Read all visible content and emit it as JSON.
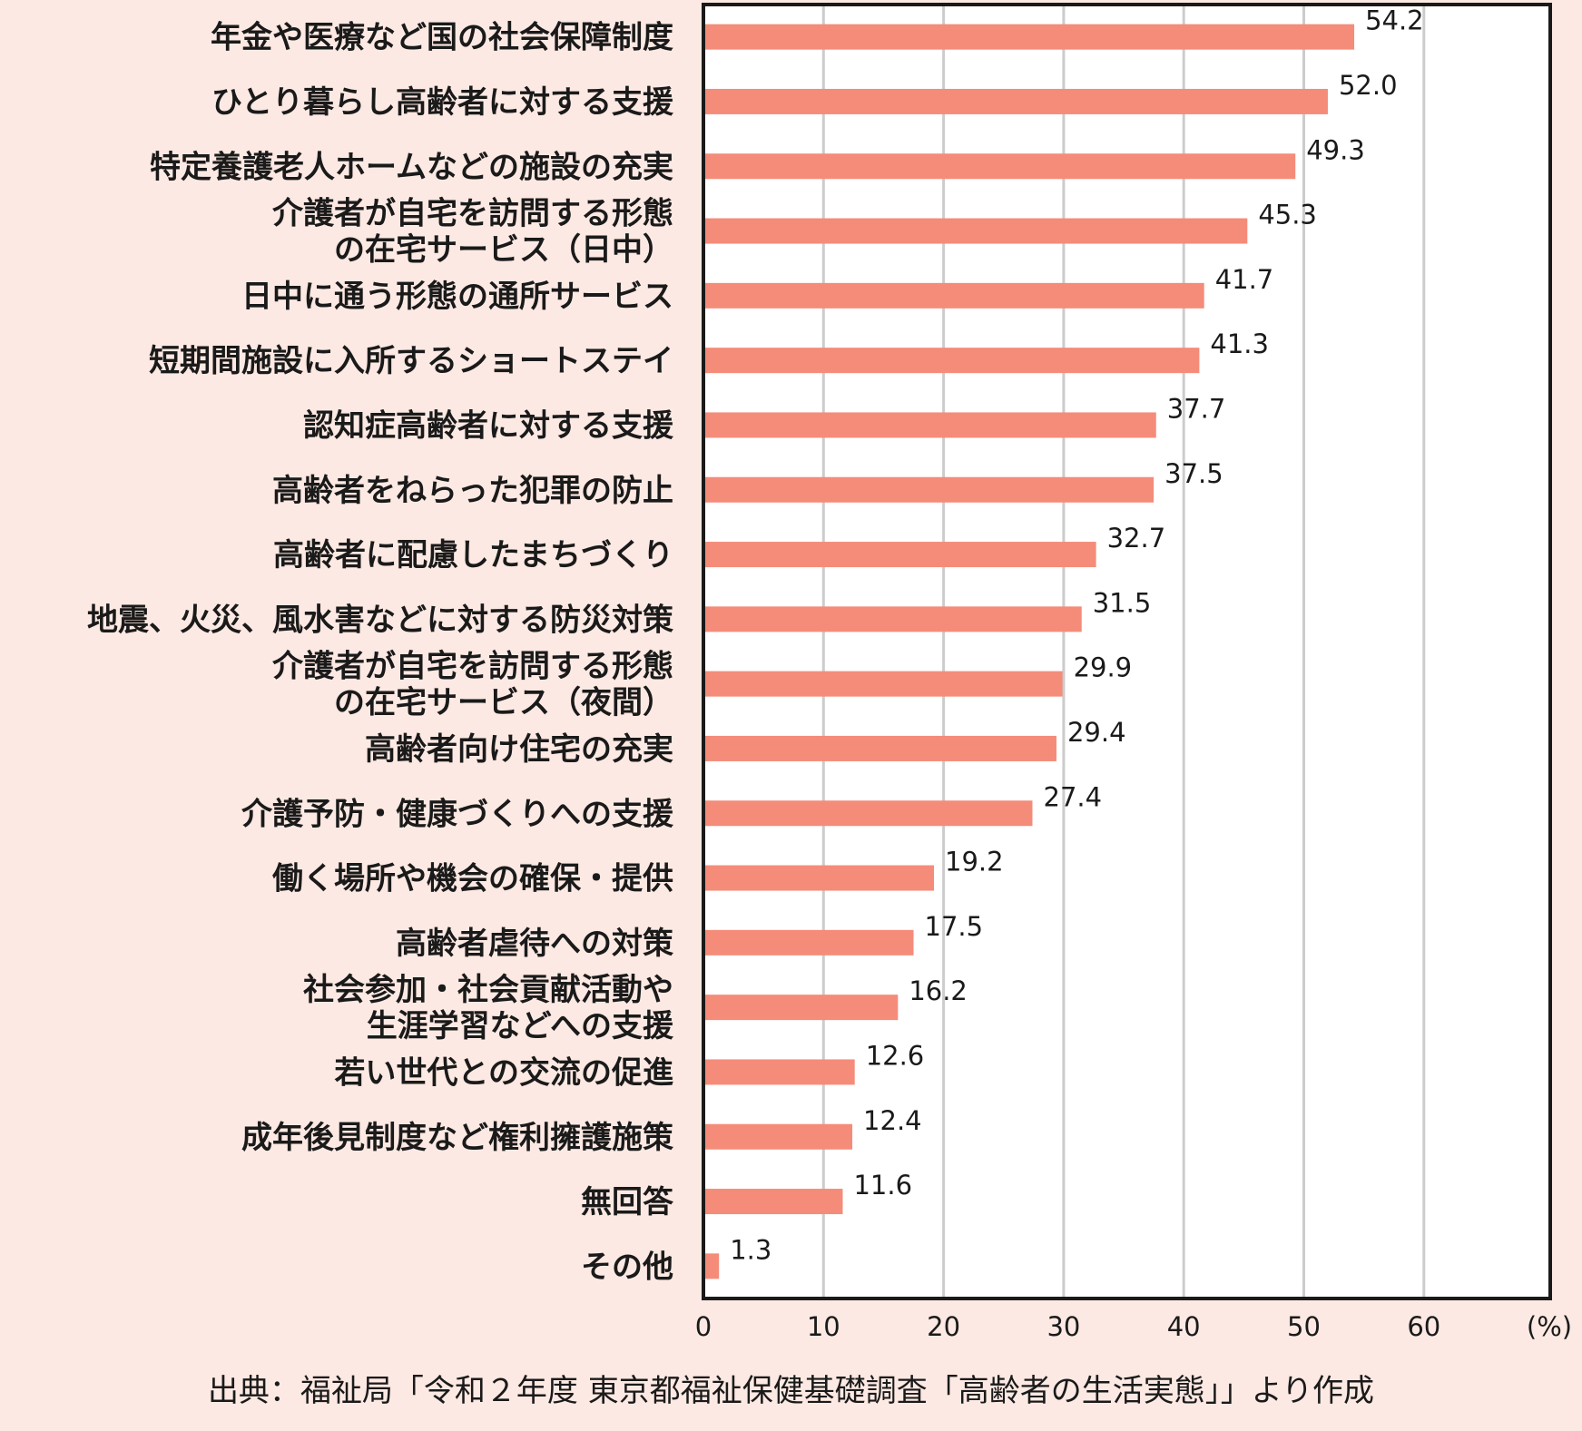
{
  "chart_data": {
    "type": "bar",
    "orientation": "horizontal",
    "categories": [
      "年金や医療など国の社会保障制度",
      "ひとり暮らし高齢者に対する支援",
      "特定養護老人ホームなどの施設の充実",
      "介護者が自宅を訪問する形態\nの在宅サービス（日中）",
      "日中に通う形態の通所サービス",
      "短期間施設に入所するショートステイ",
      "認知症高齢者に対する支援",
      "高齢者をねらった犯罪の防止",
      "高齢者に配慮したまちづくり",
      "地震、火災、風水害などに対する防災対策",
      "介護者が自宅を訪問する形態\nの在宅サービス（夜間）",
      "高齢者向け住宅の充実",
      "介護予防・健康づくりへの支援",
      "働く場所や機会の確保・提供",
      "高齢者虐待への対策",
      "社会参加・社会貢献活動や\n生涯学習などへの支援",
      "若い世代との交流の促進",
      "成年後見制度など権利擁護施策",
      "無回答",
      "その他"
    ],
    "values": [
      54.2,
      52.0,
      49.3,
      45.3,
      41.7,
      41.3,
      37.7,
      37.5,
      32.7,
      31.5,
      29.9,
      29.4,
      27.4,
      19.2,
      17.5,
      16.2,
      12.6,
      12.4,
      11.6,
      1.3
    ],
    "value_labels": [
      "54.2",
      "52.0",
      "49.3",
      "45.3",
      "41.7",
      "41.3",
      "37.7",
      "37.5",
      "32.7",
      "31.5",
      "29.9",
      "29.4",
      "27.4",
      "19.2",
      "17.5",
      "16.2",
      "12.6",
      "12.4",
      "11.6",
      "1.3"
    ],
    "xlim": [
      0,
      70
    ],
    "xticks": [
      "0",
      "10",
      "20",
      "30",
      "40",
      "50",
      "60"
    ],
    "xunit": "(%)",
    "grid": true,
    "bar_color": "#f48c79",
    "grid_color": "#cccccc",
    "frame_color": "#1a1a1a",
    "plot_background": "#ffffff",
    "page_background": "#fde9e3"
  },
  "source": "出典：福祉局「令和２年度 東京都福祉保健基礎調査「高齢者の生活実態」」より作成"
}
